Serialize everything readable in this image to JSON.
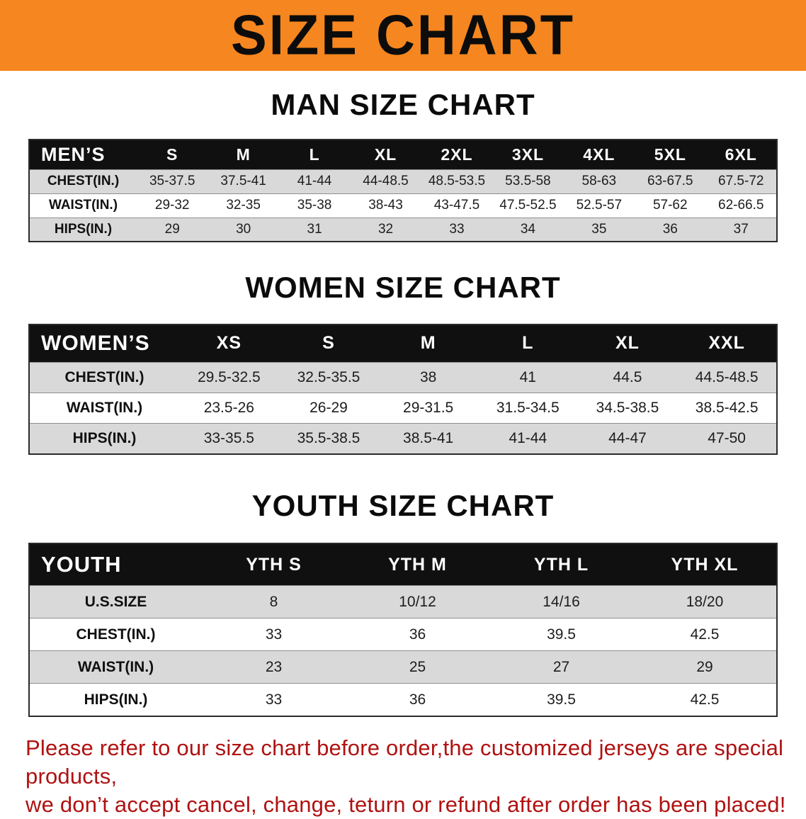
{
  "banner": {
    "title": "SIZE CHART",
    "bg_color": "#F6861F",
    "text_color": "#0C0C0C"
  },
  "sections": {
    "men": {
      "heading": "MAN SIZE CHART",
      "table": {
        "header": [
          "MEN’S",
          "S",
          "M",
          "L",
          "XL",
          "2XL",
          "3XL",
          "4XL",
          "5XL",
          "6XL"
        ],
        "rows": [
          {
            "label": "CHEST(IN.)",
            "values": [
              "35-37.5",
              "37.5-41",
              "41-44",
              "44-48.5",
              "48.5-53.5",
              "53.5-58",
              "58-63",
              "63-67.5",
              "67.5-72"
            ]
          },
          {
            "label": "WAIST(IN.)",
            "values": [
              "29-32",
              "32-35",
              "35-38",
              "38-43",
              "43-47.5",
              "47.5-52.5",
              "52.5-57",
              "57-62",
              "62-66.5"
            ]
          },
          {
            "label": "HIPS(IN.)",
            "values": [
              "29",
              "30",
              "31",
              "32",
              "33",
              "34",
              "35",
              "36",
              "37"
            ]
          }
        ]
      }
    },
    "women": {
      "heading": "WOMEN SIZE CHART",
      "table": {
        "header": [
          "WOMEN’S",
          "XS",
          "S",
          "M",
          "L",
          "XL",
          "XXL"
        ],
        "rows": [
          {
            "label": "CHEST(IN.)",
            "values": [
              "29.5-32.5",
              "32.5-35.5",
              "38",
              "41",
              "44.5",
              "44.5-48.5"
            ]
          },
          {
            "label": "WAIST(IN.)",
            "values": [
              "23.5-26",
              "26-29",
              "29-31.5",
              "31.5-34.5",
              "34.5-38.5",
              "38.5-42.5"
            ]
          },
          {
            "label": "HIPS(IN.)",
            "values": [
              "33-35.5",
              "35.5-38.5",
              "38.5-41",
              "41-44",
              "44-47",
              "47-50"
            ]
          }
        ]
      }
    },
    "youth": {
      "heading": "YOUTH SIZE CHART",
      "table": {
        "header": [
          "YOUTH",
          "YTH S",
          "YTH M",
          "YTH L",
          "YTH XL"
        ],
        "rows": [
          {
            "label": "U.S.SIZE",
            "values": [
              "8",
              "10/12",
              "14/16",
              "18/20"
            ]
          },
          {
            "label": "CHEST(IN.)",
            "values": [
              "33",
              "36",
              "39.5",
              "42.5"
            ]
          },
          {
            "label": "WAIST(IN.)",
            "values": [
              "23",
              "25",
              "27",
              "29"
            ]
          },
          {
            "label": "HIPS(IN.)",
            "values": [
              "33",
              "36",
              "39.5",
              "42.5"
            ]
          }
        ]
      }
    }
  },
  "disclaimer": {
    "line1": "Please refer to our size chart before order,the customized jerseys are special products,",
    "line2": "we don’t accept cancel, change, teturn or refund after order has been placed!",
    "color": "#B01111"
  }
}
